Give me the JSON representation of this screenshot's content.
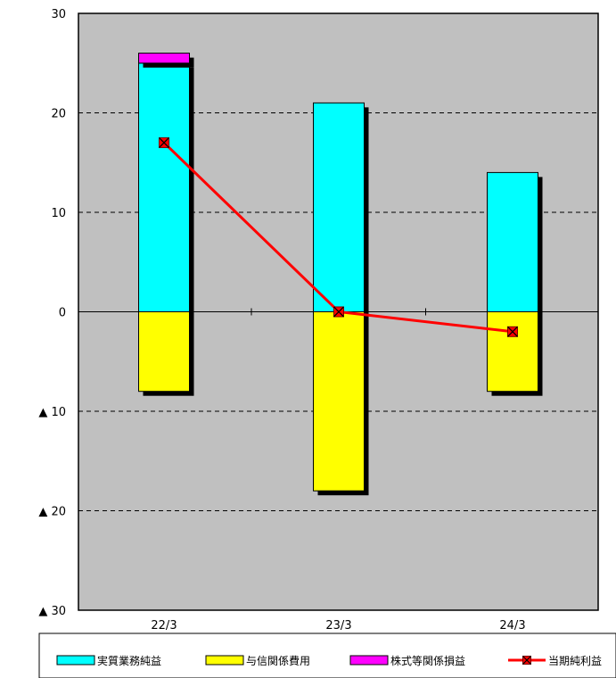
{
  "chart_data": {
    "type": "bar",
    "stacked": true,
    "categories": [
      "22/3",
      "23/3",
      "24/3"
    ],
    "ylim": [
      -30,
      30
    ],
    "y_ticks": [
      30,
      20,
      10,
      0,
      -10,
      -20,
      -30
    ],
    "y_tick_labels": [
      "30",
      "20",
      "10",
      "0",
      "▲ 10",
      "▲ 20",
      "▲ 30"
    ],
    "grid": "horizontal dashed",
    "legend_position": "bottom",
    "plot_background": "#c0c0c0",
    "series": [
      {
        "name": "実質業務純益",
        "kind": "bar",
        "color": "#00ffff",
        "values": [
          25,
          21,
          14
        ]
      },
      {
        "name": "与信関係費用",
        "kind": "bar",
        "color": "#ffff00",
        "values": [
          -8,
          -18,
          -8
        ]
      },
      {
        "name": "株式等関係損益",
        "kind": "bar",
        "color": "#ff00ff",
        "values": [
          1,
          0,
          0
        ]
      },
      {
        "name": "当期純利益",
        "kind": "line",
        "color": "#ff0000",
        "marker": "x-square",
        "values": [
          17,
          0,
          -2
        ]
      }
    ]
  }
}
